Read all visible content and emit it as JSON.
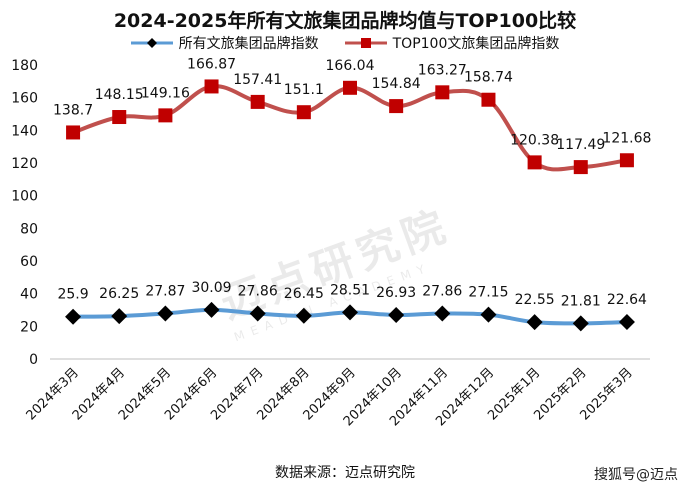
{
  "chart_data": {
    "type": "line",
    "title": "2024-2025年所有文旅集团品牌均值与TOP100比较",
    "categories": [
      "2024年3月",
      "2024年4月",
      "2024年5月",
      "2024年6月",
      "2024年7月",
      "2024年8月",
      "2024年9月",
      "2024年10月",
      "2024年11月",
      "2024年12月",
      "2025年1月",
      "2025年2月",
      "2025年3月"
    ],
    "series": [
      {
        "name": "所有文旅集团品牌指数",
        "color": "#5B9BD5",
        "marker_color": "#000000",
        "marker": "diamond",
        "values": [
          25.9,
          26.25,
          27.87,
          30.09,
          27.86,
          26.45,
          28.51,
          26.93,
          27.86,
          27.15,
          22.55,
          21.81,
          22.64
        ],
        "labels": [
          "25.9",
          "26.25",
          "27.87",
          "30.09",
          "27.86",
          "26.45",
          "28.51",
          "26.93",
          "27.86",
          "27.15",
          "22.55",
          "21.81",
          "22.64"
        ]
      },
      {
        "name": "TOP100文旅集团品牌指数",
        "color": "#C0504D",
        "marker_color": "#C00000",
        "marker": "square",
        "values": [
          138.7,
          148.15,
          149.16,
          166.87,
          157.41,
          151.1,
          166.04,
          154.84,
          163.27,
          158.74,
          120.38,
          117.49,
          121.68
        ],
        "labels": [
          "138.7",
          "148.15",
          "149.16",
          "166.87",
          "157.41",
          "151.1",
          "166.04",
          "154.84",
          "163.27",
          "158.74",
          "120.38",
          "117.49",
          "121.68"
        ]
      }
    ],
    "ylim": [
      0,
      180
    ],
    "yticks": [
      "0",
      "20",
      "40",
      "60",
      "80",
      "100",
      "120",
      "140",
      "160",
      "180"
    ],
    "legend_position": "top-center",
    "grid": false
  },
  "source_text": "数据来源：迈点研究院",
  "credit_text": "搜狐号@迈点",
  "watermark": {
    "main": "迈点研究院",
    "sub": "MEADIN ACADEMY"
  }
}
